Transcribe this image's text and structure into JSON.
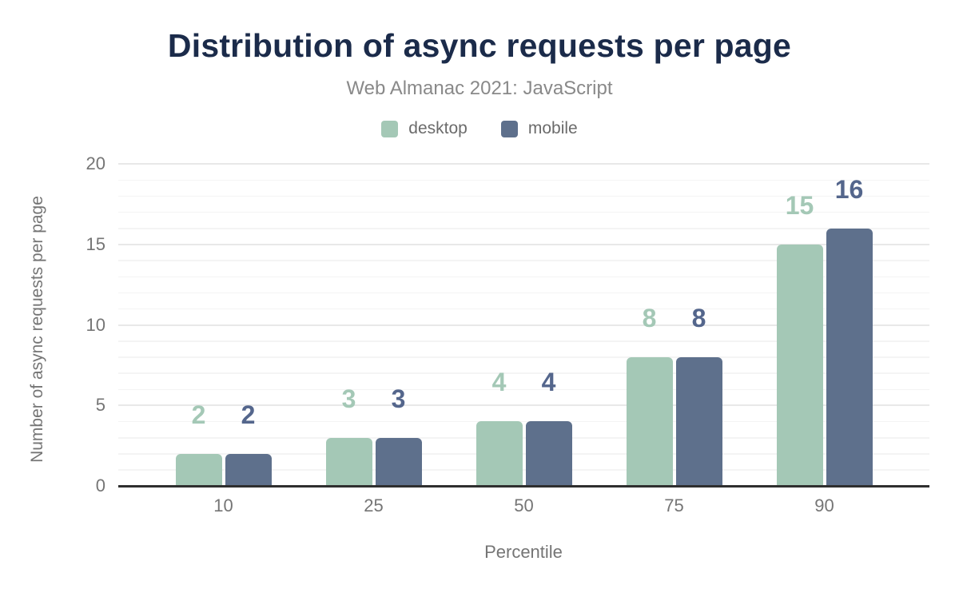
{
  "chart_data": {
    "type": "bar",
    "title": "Distribution of async requests per page",
    "subtitle": "Web Almanac 2021: JavaScript",
    "xlabel": "Percentile",
    "ylabel": "Number of async requests per page",
    "categories": [
      "10",
      "25",
      "50",
      "75",
      "90"
    ],
    "series": [
      {
        "name": "desktop",
        "color": "#a4c8b6",
        "label_color": "#a4c8b6",
        "values": [
          2,
          3,
          4,
          8,
          15
        ]
      },
      {
        "name": "mobile",
        "color": "#5e708c",
        "label_color": "#54668c",
        "values": [
          2,
          3,
          4,
          8,
          16
        ]
      }
    ],
    "ylim": [
      0,
      20
    ],
    "y_major_ticks": [
      0,
      5,
      10,
      15,
      20
    ],
    "y_minor_step": 1,
    "grid": "horizontal",
    "legend_position": "top",
    "data_labels_shown": true
  },
  "colors": {
    "title_text": "#1b2b4a",
    "subtitle_text": "#898989",
    "legend_text": "#6b6b6b",
    "axis_text": "#757575",
    "axis_line": "#2f2f2f",
    "gridline_major": "#e8e8e8",
    "gridline_minor": "#f4f4f4",
    "background": "#ffffff"
  }
}
